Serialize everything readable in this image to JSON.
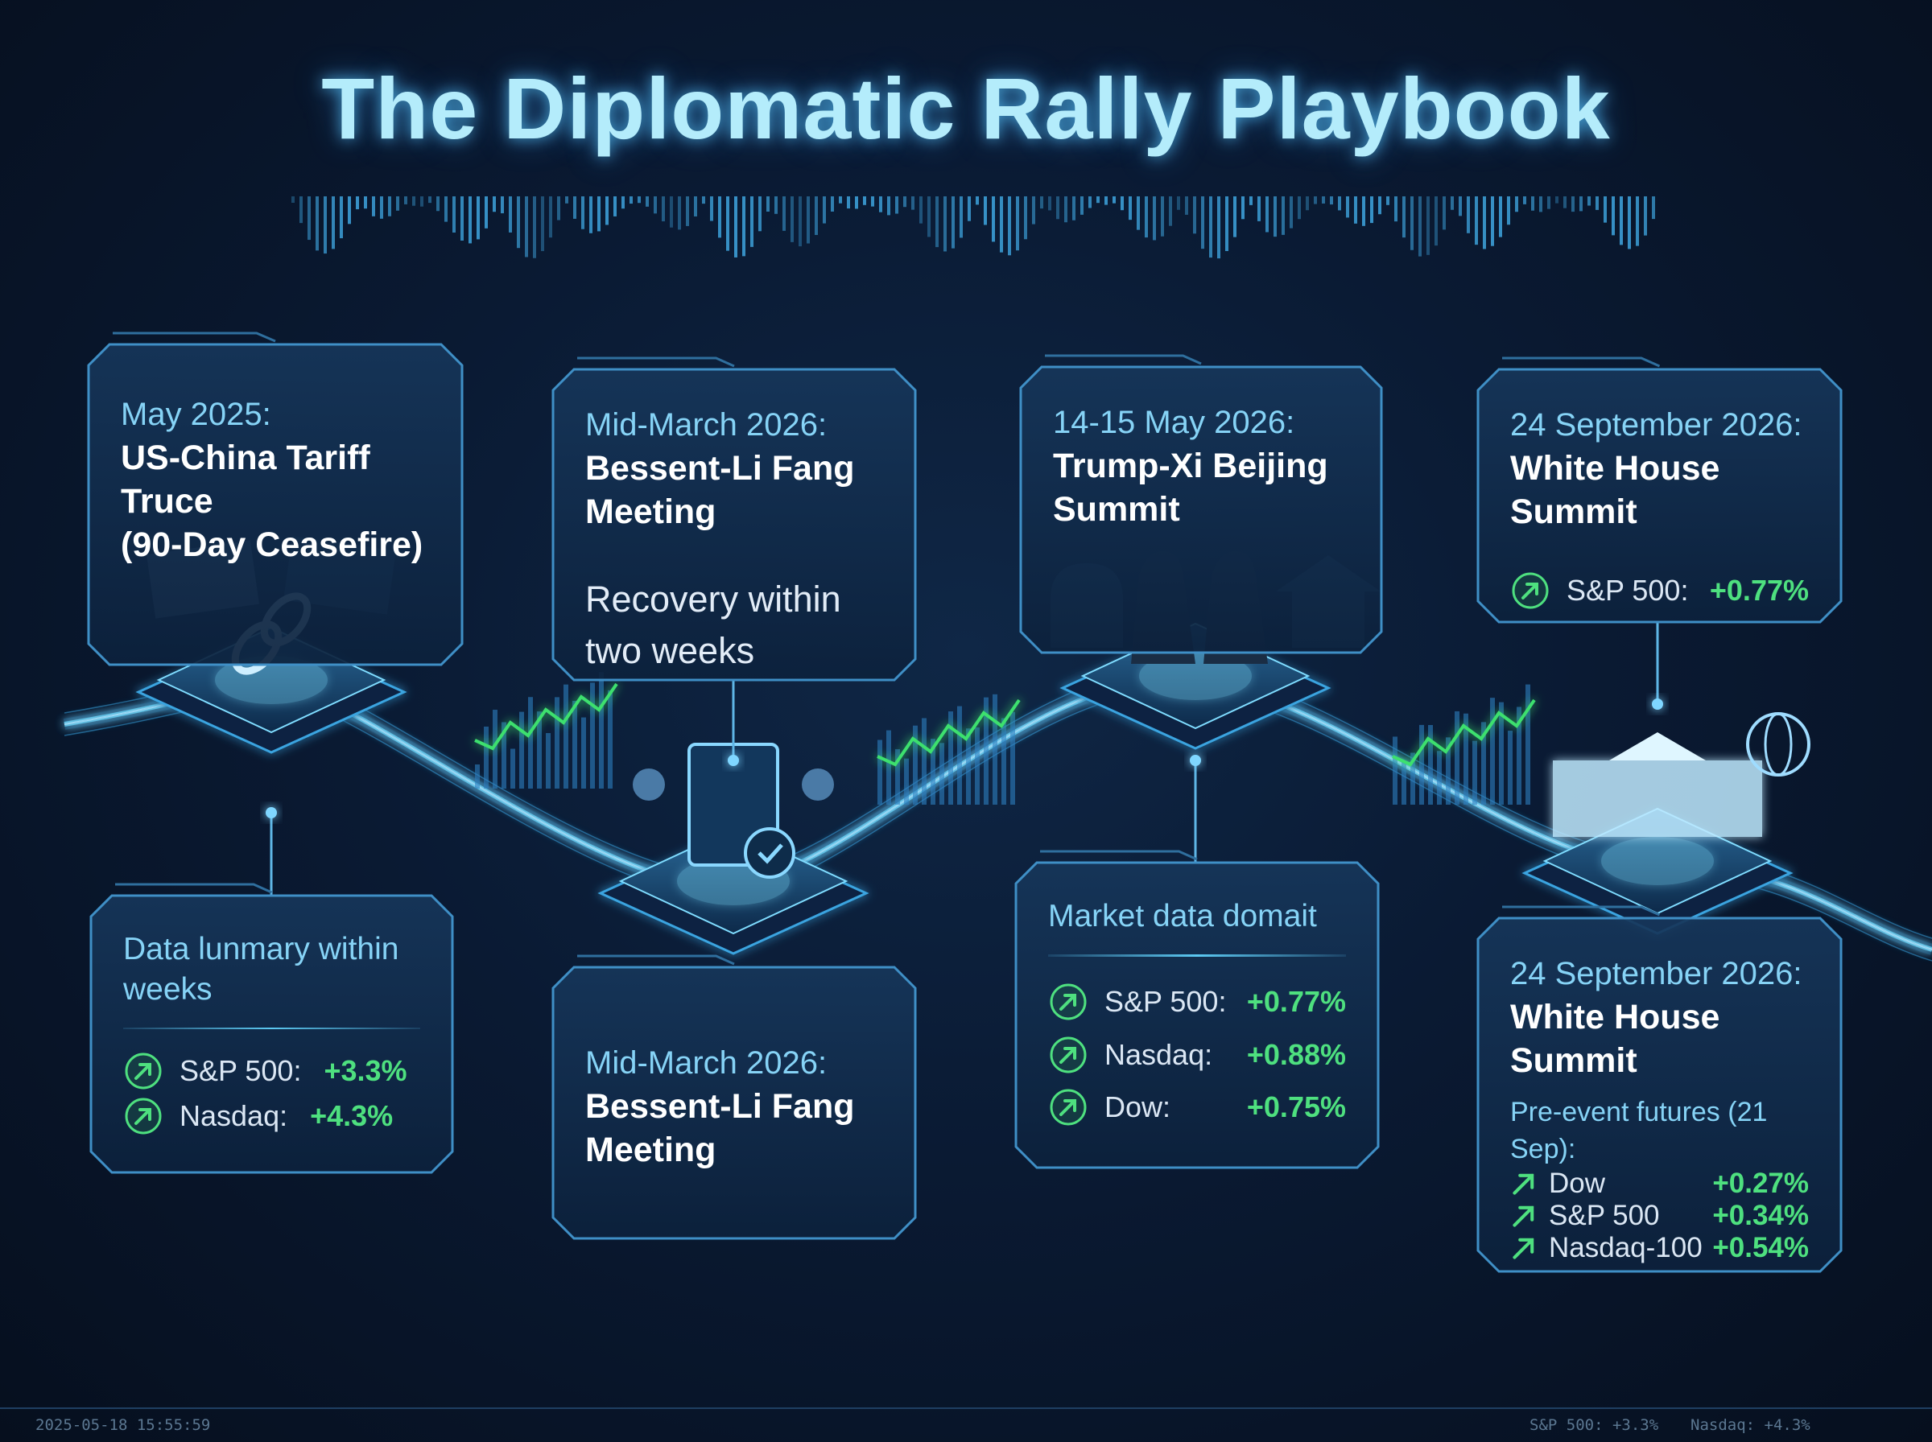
{
  "header": {
    "title": "The Diplomatic Rally Playbook"
  },
  "events": [
    {
      "top": {
        "date": "May 2025:",
        "title": [
          "US-China Tariff Truce",
          "(90-Day Ceasefire)"
        ]
      },
      "bottom": {
        "heading": [
          "Data lunmary within",
          "weeks"
        ],
        "rows": [
          {
            "label": "S&P 500:",
            "change": "+3.3%"
          },
          {
            "label": "Nasdaq:",
            "change": "+4.3%"
          }
        ]
      }
    },
    {
      "top": {
        "date": "Mid-March 2026:",
        "title": [
          "Bessent-Li Fang",
          "Meeting"
        ],
        "note": [
          "Recovery within",
          "two weeks"
        ]
      },
      "bottom": {
        "date": "Mid-March 2026:",
        "title": [
          "Bessent-Li Fang",
          "Meeting"
        ]
      }
    },
    {
      "top": {
        "date": "14-15 May 2026:",
        "title": [
          "Trump-Xi Beijing",
          "Summit"
        ]
      },
      "bottom": {
        "heading": [
          "Market data domait"
        ],
        "rows": [
          {
            "label": "S&P 500:",
            "change": "+0.77%"
          },
          {
            "label": "Nasdaq:",
            "change": "+0.88%"
          },
          {
            "label": "Dow:",
            "change": "+0.75%"
          }
        ]
      }
    },
    {
      "top": {
        "date": "24 September 2026:",
        "title": [
          "White House",
          "Summit"
        ],
        "rows": [
          {
            "label": "S&P 500:",
            "change": "+0.77%"
          }
        ]
      },
      "bottom": {
        "date": "24 September 2026:",
        "title": [
          "White House Summit"
        ],
        "heading": [
          "Pre-event futures (21 Sep):"
        ],
        "rows": [
          {
            "label": "Dow",
            "change": "+0.27%"
          },
          {
            "label": "S&P 500",
            "change": "+0.34%"
          },
          {
            "label": "Nasdaq-100",
            "change": "+0.54%"
          }
        ]
      }
    }
  ],
  "footer": {
    "timestamp": "2025-05-18 15:55:59",
    "ticker": [
      "S&P 500: +3.3%",
      "Nasdaq: +4.3%"
    ]
  }
}
